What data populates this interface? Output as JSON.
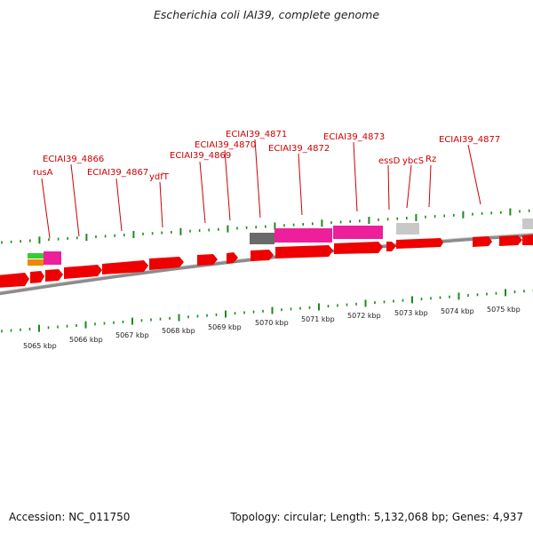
{
  "title": "Escherichia coli IAI39, complete genome",
  "footer": {
    "accession": "Accession: NC_011750",
    "topology": "Topology: circular; Length: 5,132,068 bp; Genes: 4,937"
  },
  "colors": {
    "gene": "#ee0000",
    "label": "#cc0000",
    "tick": "#1d8a1d",
    "backbone": "#8c8c8c",
    "pink": "#ee1f9b",
    "dark_gray": "#6a6a6a",
    "light_gray": "#c8c8c8",
    "green": "#33cc33",
    "orange": "#ee8800"
  },
  "gene_labels": [
    "rusA",
    "ECIAI39_4866",
    "ECIAI39_4867",
    "ydfT",
    "ECIAI39_4869",
    "ECIAI39_4870",
    "ECIAI39_4871",
    "ECIAI39_4872",
    "ECIAI39_4873",
    "essD",
    "ybcS",
    "Rz",
    "ECIAI39_4877"
  ],
  "kbp_labels": [
    "5065 kbp",
    "5066 kbp",
    "5067 kbp",
    "5068 kbp",
    "5069 kbp",
    "5070 kbp",
    "5071 kbp",
    "5072 kbp",
    "5073 kbp",
    "5074 kbp",
    "5075 kbp"
  ]
}
